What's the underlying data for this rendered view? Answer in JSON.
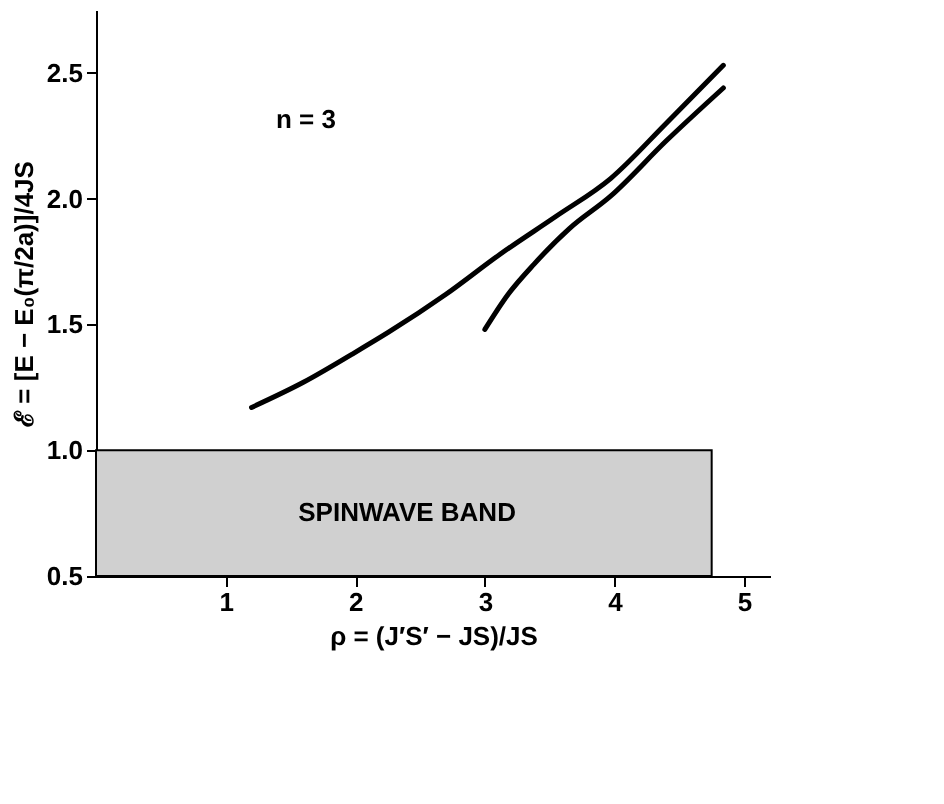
{
  "chart_data": {
    "type": "line",
    "xlabel": "ρ = (J′S′ − JS)/JS",
    "ylabel": "ℰ = [E − E₀(π/2a)]/4JS",
    "annotations": [
      "n = 3"
    ],
    "series": [
      {
        "color": "#000000",
        "x": [
          1.2,
          1.6,
          1.97,
          2.26,
          2.7,
          3.12,
          3.55,
          3.97,
          4.4,
          4.84
        ],
        "values": [
          1.17,
          1.27,
          1.38,
          1.47,
          1.62,
          1.78,
          1.93,
          2.08,
          2.3,
          2.53
        ]
      },
      {
        "color": "#000000",
        "x": [
          3.0,
          3.18,
          3.38,
          3.65,
          3.97,
          4.4,
          4.84
        ],
        "values": [
          1.48,
          1.62,
          1.74,
          1.88,
          2.01,
          2.23,
          2.44
        ]
      }
    ],
    "bands": [
      {
        "axis": "y",
        "from": 0.5,
        "to": 1.0,
        "label": "SPINWAVE BAND",
        "color": "#d0d0d0"
      }
    ],
    "xlim": [
      0,
      5.2
    ],
    "ylim": [
      0.5,
      2.75
    ],
    "xticks": [
      1,
      2,
      3,
      4,
      5
    ],
    "yticks": [
      0.5,
      {
        "value": 1.0,
        "label": "1.0"
      },
      1.5,
      {
        "value": 2.0,
        "label": "2.0"
      },
      2.5
    ],
    "grid": false,
    "marker": "none",
    "line_style": "solid"
  }
}
